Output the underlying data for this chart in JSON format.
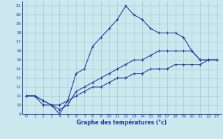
{
  "xlabel": "Graphe des températures (°c)",
  "xlim": [
    -0.5,
    23.5
  ],
  "ylim": [
    9,
    21.5
  ],
  "yticks": [
    9,
    10,
    11,
    12,
    13,
    14,
    15,
    16,
    17,
    18,
    19,
    20,
    21
  ],
  "xticks": [
    0,
    1,
    2,
    3,
    4,
    5,
    6,
    7,
    8,
    9,
    10,
    11,
    12,
    13,
    14,
    15,
    16,
    17,
    18,
    19,
    20,
    21,
    22,
    23
  ],
  "bg_color": "#cce8ee",
  "line_color": "#1c3d9e",
  "grid_color": "#9ec8d4",
  "line1": {
    "x": [
      0,
      1,
      2,
      3,
      4,
      5,
      6,
      7,
      8,
      9,
      10,
      11,
      12,
      13,
      14,
      15,
      16,
      17,
      18,
      19,
      20,
      21,
      22,
      23
    ],
    "y": [
      11,
      11,
      10,
      10,
      9,
      10.5,
      13.5,
      14,
      16.5,
      17.5,
      18.5,
      19.5,
      21,
      20,
      19.5,
      18.5,
      18,
      18,
      18,
      17.5,
      16,
      15,
      15,
      15
    ]
  },
  "line2": {
    "x": [
      0,
      1,
      2,
      3,
      4,
      5,
      6,
      7,
      8,
      9,
      10,
      11,
      12,
      13,
      14,
      15,
      16,
      17,
      18,
      19,
      20,
      21,
      22,
      23
    ],
    "y": [
      11,
      11,
      10.5,
      10,
      9.5,
      10,
      11.5,
      12,
      12.5,
      13,
      13.5,
      14,
      14.5,
      15,
      15,
      15.5,
      16,
      16,
      16,
      16,
      16,
      15,
      15,
      15
    ]
  },
  "line3": {
    "x": [
      0,
      1,
      2,
      3,
      4,
      5,
      6,
      7,
      8,
      9,
      10,
      11,
      12,
      13,
      14,
      15,
      16,
      17,
      18,
      19,
      20,
      21,
      22,
      23
    ],
    "y": [
      11,
      11,
      10.5,
      10,
      10,
      10.5,
      11,
      11.5,
      12,
      12,
      12.5,
      13,
      13,
      13.5,
      13.5,
      14,
      14,
      14,
      14.5,
      14.5,
      14.5,
      14.5,
      15,
      15
    ]
  }
}
